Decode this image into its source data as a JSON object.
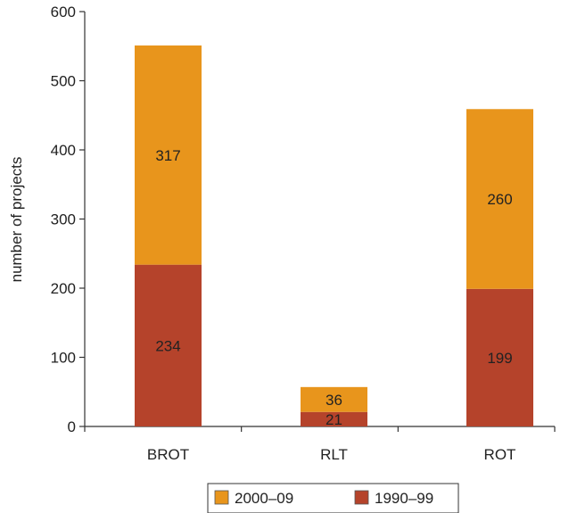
{
  "chart_data": {
    "type": "bar",
    "stacked": true,
    "categories": [
      "BROT",
      "RLT",
      "ROT"
    ],
    "series": [
      {
        "name": "1990–99",
        "values": [
          234,
          21,
          199
        ],
        "color": "#b5432b"
      },
      {
        "name": "2000–09",
        "values": [
          317,
          36,
          260
        ],
        "color": "#e8951c"
      }
    ],
    "ylabel": "number of projects",
    "xlabel": "",
    "ylim": [
      0,
      600
    ],
    "yticks": [
      0,
      100,
      200,
      300,
      400,
      500,
      600
    ],
    "grid": false,
    "legend": {
      "placement": "bottom-center",
      "order": [
        "2000–09",
        "1990–99"
      ]
    }
  }
}
